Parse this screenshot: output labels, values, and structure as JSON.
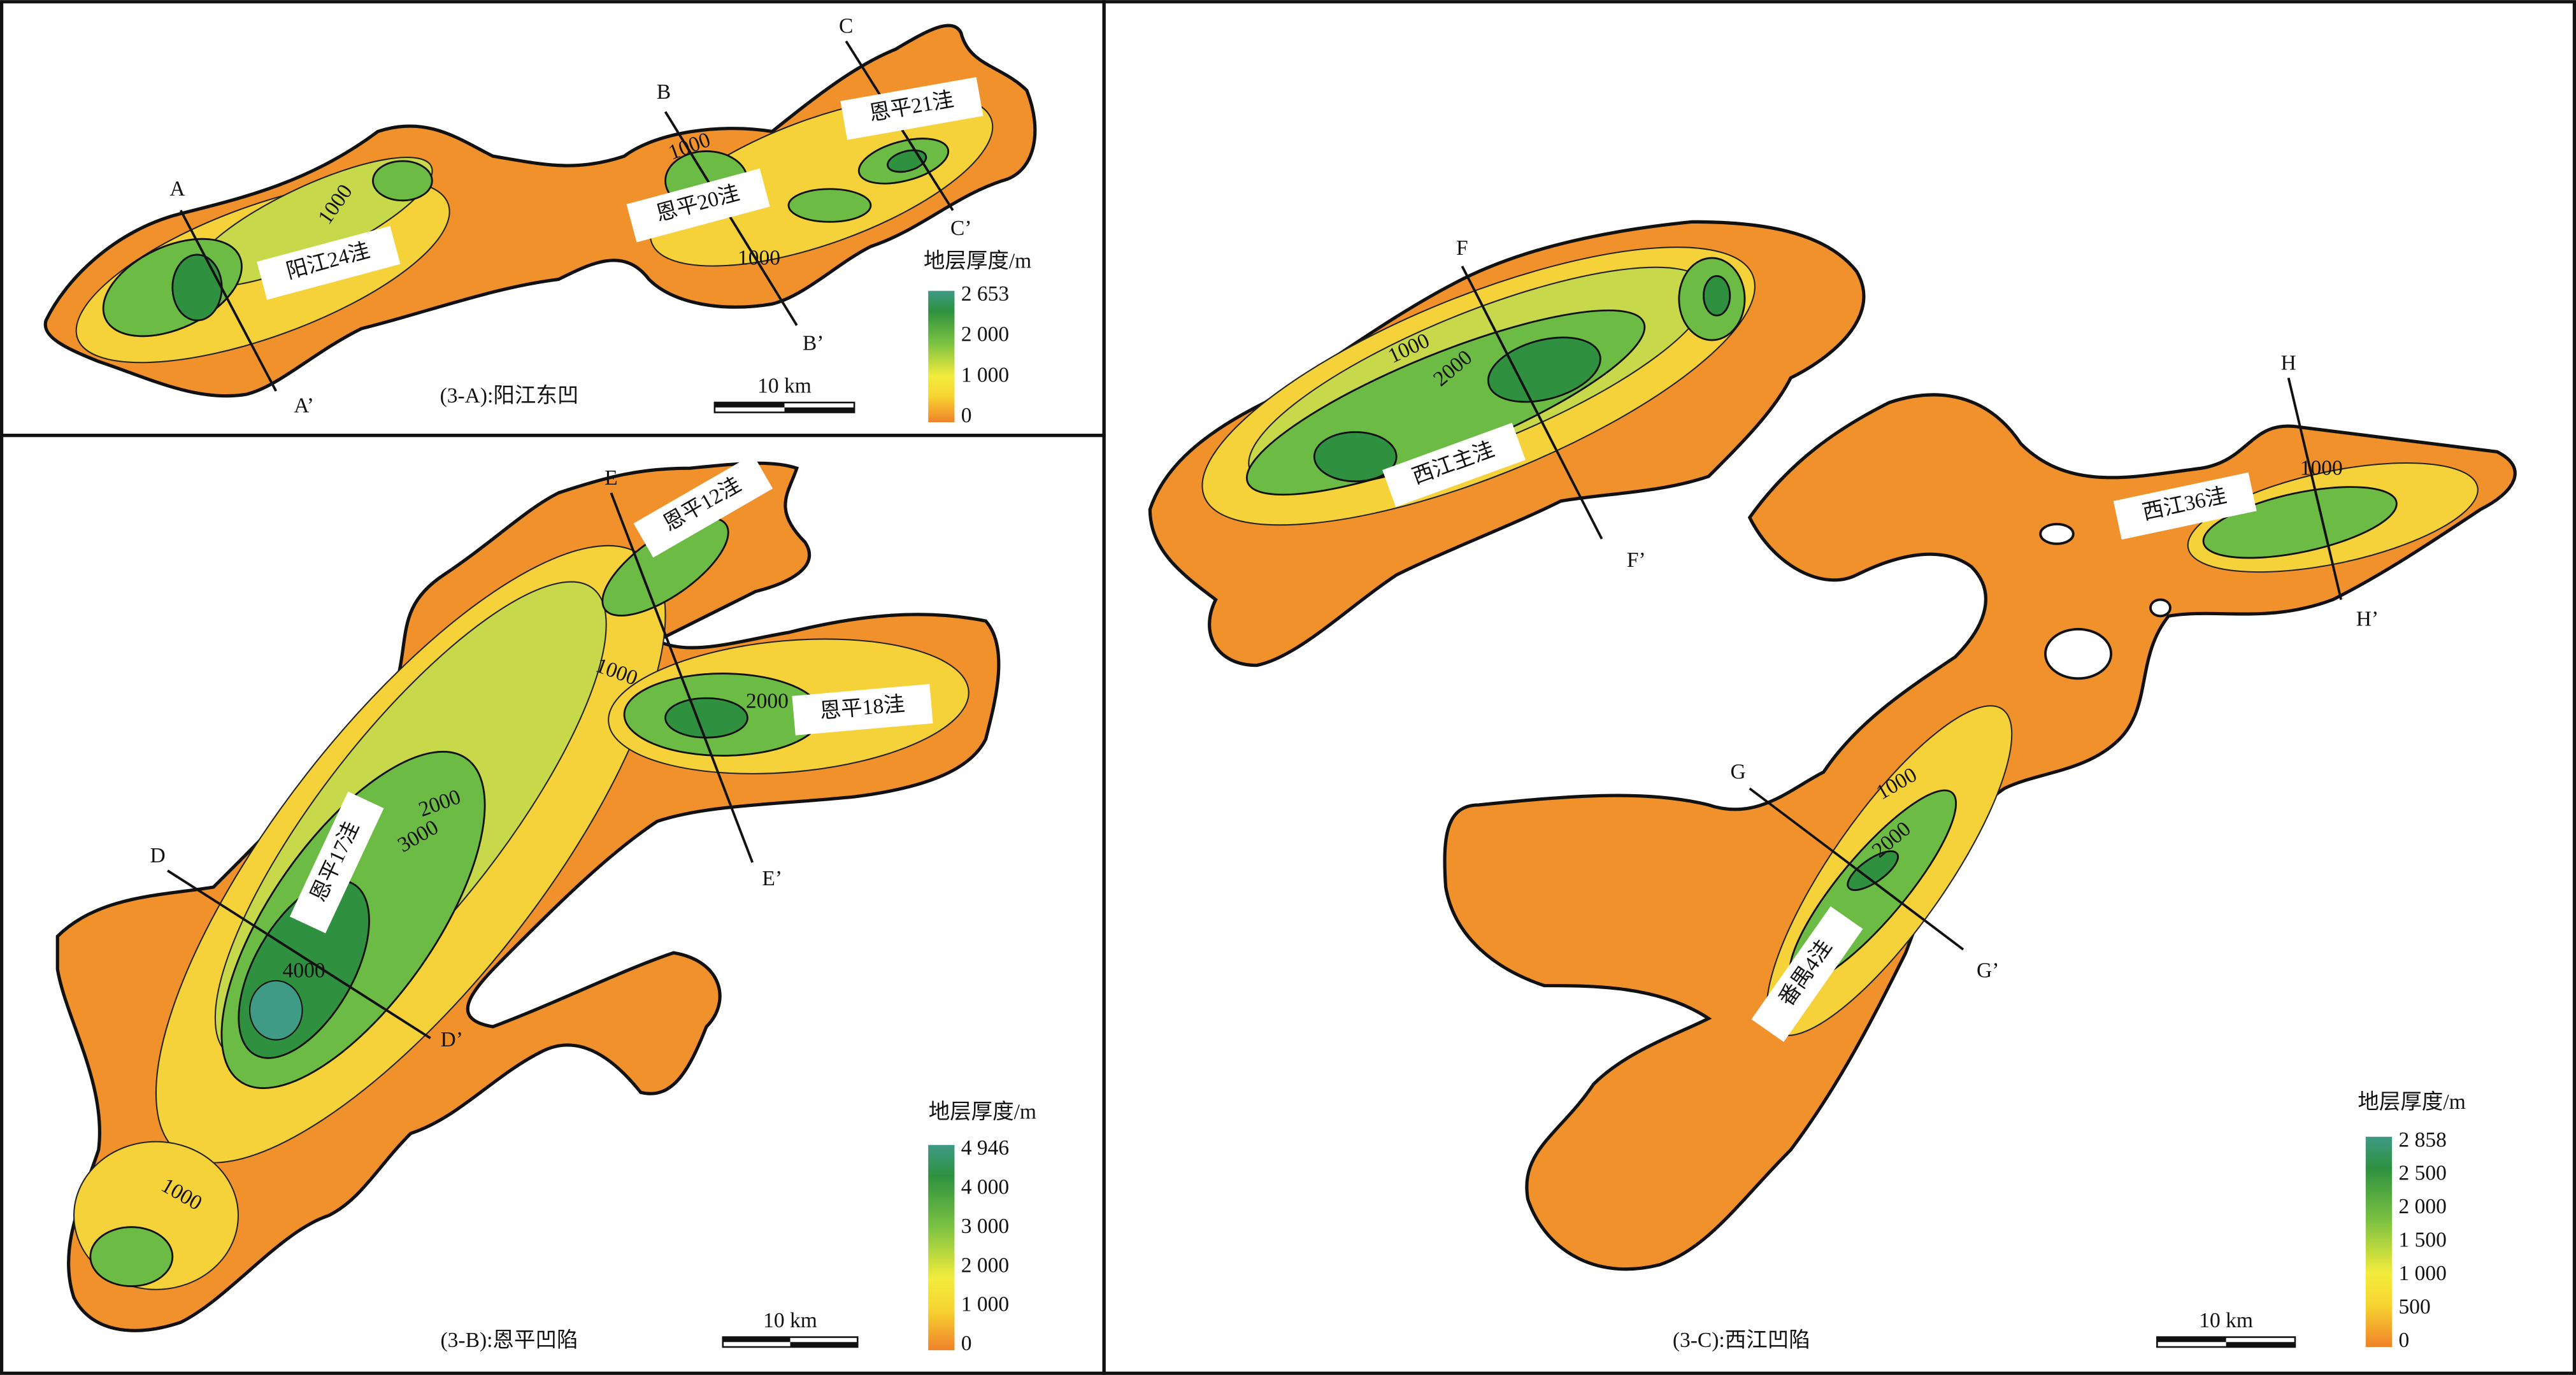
{
  "panels": [
    {
      "caption": "(3-A):阳江东凹",
      "basins": [
        "阳江24洼",
        "恩平20洼",
        "恩平21洼"
      ],
      "sections": [
        [
          "A",
          "A’"
        ],
        [
          "B",
          "B’"
        ],
        [
          "C",
          "C’"
        ]
      ],
      "contour_labels": [
        "1000",
        "1000",
        "1000"
      ],
      "legend": {
        "title": "地层厚度/m",
        "ticks": [
          "2 653",
          "2 000",
          "1 000",
          "0"
        ]
      },
      "scale_bar": "10 km"
    },
    {
      "caption": "(3-B):恩平凹陷",
      "basins": [
        "恩平12洼",
        "恩平18洼",
        "恩平17洼"
      ],
      "sections": [
        [
          "D",
          "D’"
        ],
        [
          "E",
          "E’"
        ]
      ],
      "contour_labels": [
        "1000",
        "2000",
        "2000",
        "3000",
        "4000",
        "1000"
      ],
      "legend": {
        "title": "地层厚度/m",
        "ticks": [
          "4 946",
          "4 000",
          "3 000",
          "2 000",
          "1 000",
          "0"
        ]
      },
      "scale_bar": "10 km"
    },
    {
      "caption": "(3-C):西江凹陷",
      "basins": [
        "西江主洼",
        "西江36洼",
        "番禺4洼"
      ],
      "sections": [
        [
          "F",
          "F’"
        ],
        [
          "H",
          "H’"
        ],
        [
          "G",
          "G’"
        ]
      ],
      "contour_labels": [
        "1000",
        "2000",
        "1000",
        "1000",
        "2000"
      ],
      "legend": {
        "title": "地层厚度/m",
        "ticks": [
          "2 858",
          "2 500",
          "2 000",
          "1 500",
          "1 000",
          "500",
          "0"
        ]
      },
      "scale_bar": "10 km"
    }
  ]
}
